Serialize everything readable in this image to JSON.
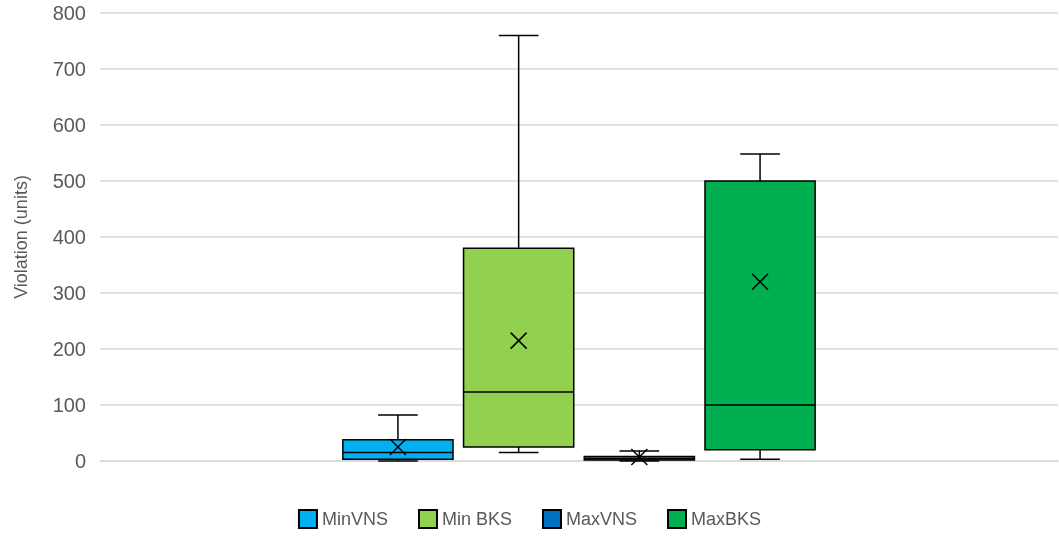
{
  "chart_data": {
    "type": "box",
    "ylabel": "Violation (units)",
    "categories": [
      null
    ],
    "ylim": [
      0,
      800
    ],
    "yticks": [
      0,
      100,
      200,
      300,
      400,
      500,
      600,
      700,
      800
    ],
    "grid": "y",
    "legend": "bottom",
    "series": [
      {
        "name": "MinVNS",
        "color": "#00b0f0",
        "boxes": [
          {
            "low": 0,
            "q1": 3,
            "median": 15,
            "q3": 38,
            "high": 82,
            "mean": 25
          }
        ]
      },
      {
        "name": "Min BKS",
        "color": "#92d050",
        "boxes": [
          {
            "low": 15,
            "q1": 25,
            "median": 123,
            "q3": 380,
            "high": 760,
            "mean": 215
          }
        ]
      },
      {
        "name": "MaxVNS",
        "color": "#0070c0",
        "boxes": [
          {
            "low": 0,
            "q1": 2,
            "median": 4,
            "q3": 8,
            "high": 18,
            "mean": 7
          }
        ]
      },
      {
        "name": "MaxBKS",
        "color": "#00b050",
        "boxes": [
          {
            "low": 3,
            "q1": 20,
            "median": 100,
            "q3": 500,
            "high": 548,
            "mean": 320
          }
        ]
      }
    ]
  }
}
